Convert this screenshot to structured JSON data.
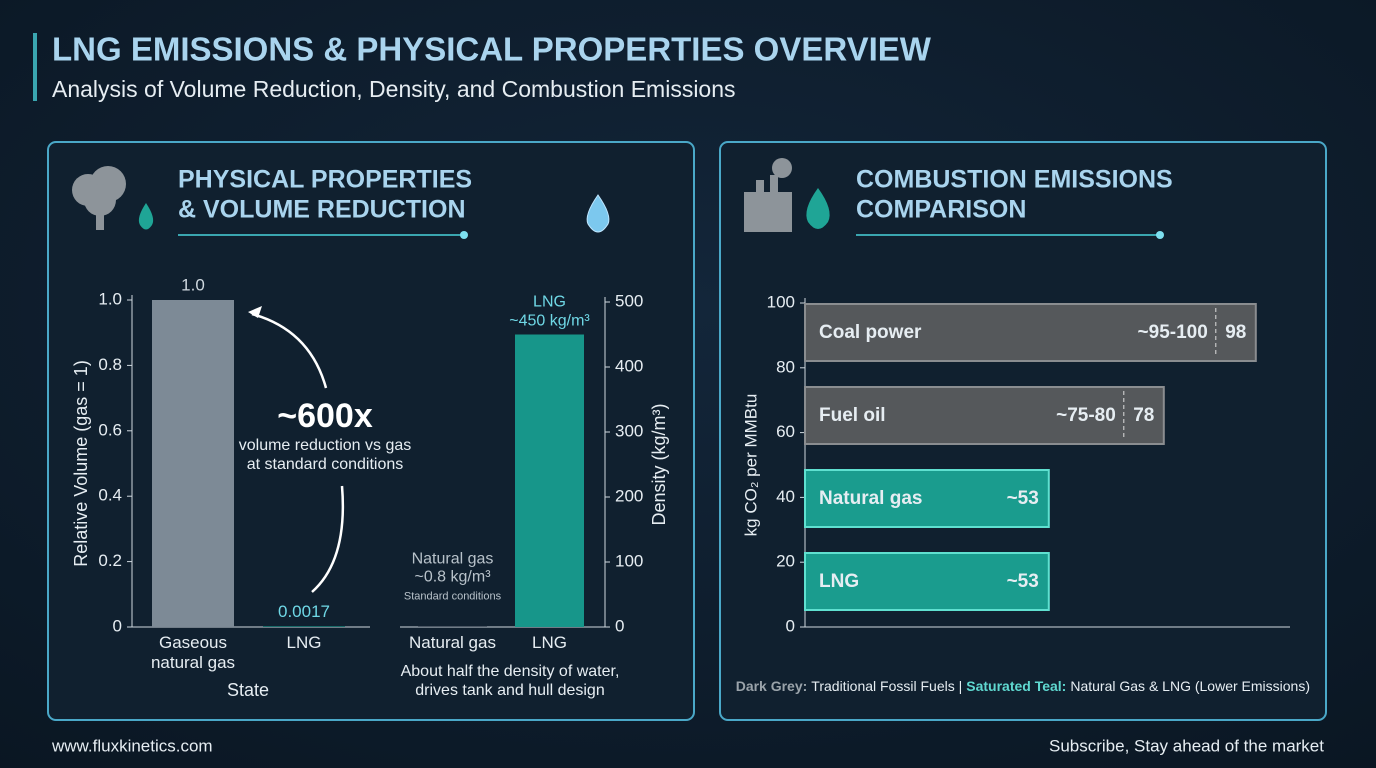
{
  "header": {
    "title": "LNG EMISSIONS & PHYSICAL PROPERTIES OVERVIEW",
    "subtitle": "Analysis of Volume Reduction, Density, and Combustion Emissions"
  },
  "panels": [
    {
      "title_lines": [
        "PHYSICAL PROPERTIES",
        "& VOLUME REDUCTION"
      ]
    },
    {
      "title_lines": [
        "COMBUSTION EMISSIONS",
        "COMPARISON"
      ]
    }
  ],
  "chart_data": [
    {
      "type": "bar",
      "categories": [
        "Gaseous natural gas",
        "LNG"
      ],
      "values": [
        1,
        0.0017
      ],
      "value_labels": [
        "1.0",
        "0.0017"
      ],
      "colors": [
        "#7d8a96",
        "#1fa596"
      ],
      "ylim": [
        0,
        1
      ],
      "yticks": [
        0,
        0.2,
        0.4,
        0.6,
        0.8,
        {
          "value": 1,
          "label": "1.0"
        }
      ],
      "y_label": "Relative Volume (gas = 1)",
      "x_label": "State",
      "annotation": {
        "headline": "~600x",
        "lines": [
          "volume reduction vs gas",
          "at standard conditions"
        ]
      }
    },
    {
      "type": "bar",
      "categories": [
        "Natural gas",
        "LNG"
      ],
      "values": [
        0.8,
        450
      ],
      "value_labels": [
        "~0.8 kg/m³",
        "~450 kg/m³"
      ],
      "notes": [
        "Standard conditions",
        null
      ],
      "colors": [
        "#7f8a94",
        "#17968a"
      ],
      "ylim": [
        0,
        500
      ],
      "yticks": [
        0,
        100,
        200,
        300,
        400,
        500
      ],
      "y_label": "Density (kg/m³)",
      "caption": [
        "About half the density of water,",
        "drives tank and hull design"
      ]
    },
    {
      "type": "hbar",
      "categories": [
        "Coal power",
        "Fuel oil",
        "Natural gas",
        "LNG"
      ],
      "values": [
        98,
        78,
        53,
        53
      ],
      "value_labels": [
        "98",
        "78",
        "~53",
        "~53"
      ],
      "range_labels": [
        "~95-100",
        "~75-80",
        null,
        null
      ],
      "colors": [
        "#55585b",
        "#55585b",
        "#1a9c8e",
        "#1a9c8e"
      ],
      "ylim": [
        0,
        100
      ],
      "yticks": [
        0,
        20,
        40,
        60,
        80,
        100
      ],
      "y_label": "kg CO₂ per MMBtu",
      "legend": [
        {
          "key": "Dark Grey:",
          "text": "Traditional Fossil Fuels |"
        },
        {
          "key": "Saturated Teal:",
          "text": "Natural Gas & LNG (Lower Emissions)"
        }
      ]
    }
  ],
  "footer": {
    "left": "www.fluxkinetics.com",
    "right": "Subscribe, Stay ahead of the market"
  }
}
